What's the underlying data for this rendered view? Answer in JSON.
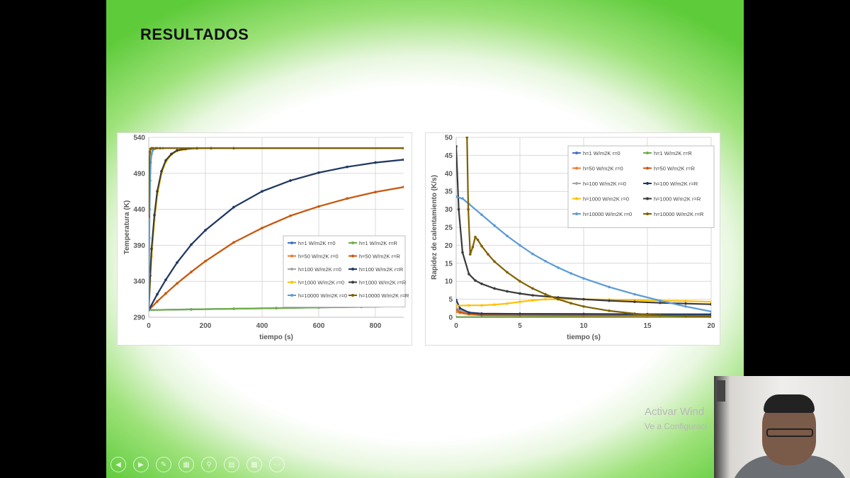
{
  "slide": {
    "title": "RESULTADOS"
  },
  "watermark": {
    "line1": "Activar Wind",
    "line2": "Ve a Configuraci"
  },
  "toolbar": {
    "icons": [
      "prev-icon",
      "next-icon",
      "pen-icon",
      "slides-icon",
      "zoom-icon",
      "subtitles-icon",
      "camera-icon",
      "more-icon"
    ]
  },
  "colors": {
    "slide_green": "#5ecb3a",
    "axis_text": "#595959",
    "grid": "#d9d9d9"
  },
  "chart_data": [
    {
      "type": "scatter",
      "title": "",
      "xlabel": "tiempo (s)",
      "ylabel": "Temperatura (K)",
      "xlim": [
        0,
        900
      ],
      "ylim": [
        290,
        540
      ],
      "xticks": [
        0,
        200,
        400,
        600,
        800
      ],
      "yticks": [
        290,
        340,
        390,
        440,
        490,
        540
      ],
      "grid": true,
      "legend_position": "lower-right inside",
      "legend_columns": 2,
      "series": [
        {
          "name": "h=1 W/m2K r=0",
          "color": "#4472c4",
          "x": [
            0,
            150,
            300,
            450,
            600,
            750,
            900
          ],
          "y": [
            300,
            300.9,
            301.8,
            302.7,
            303.6,
            304.4,
            305.3
          ]
        },
        {
          "name": "h=1 W/m2K r=R",
          "color": "#70ad47",
          "x": [
            0,
            150,
            300,
            450,
            600,
            750,
            900
          ],
          "y": [
            300,
            300.9,
            301.8,
            302.7,
            303.6,
            304.4,
            305.3
          ]
        },
        {
          "name": "h=50 W/m2K r=0",
          "color": "#ed7d31",
          "x": [
            0,
            30,
            60,
            100,
            150,
            200,
            300,
            400,
            500,
            600,
            700,
            800,
            900
          ],
          "y": [
            300,
            312,
            323,
            337,
            353,
            368,
            394,
            414,
            431,
            444,
            455,
            464,
            471
          ]
        },
        {
          "name": "h=50 W/m2K r=R",
          "color": "#c55a11",
          "x": [
            0,
            30,
            60,
            100,
            150,
            200,
            300,
            400,
            500,
            600,
            700,
            800,
            900
          ],
          "y": [
            300,
            312,
            323,
            337,
            353,
            368,
            394,
            414,
            431,
            444,
            455,
            464,
            471
          ]
        },
        {
          "name": "h=100 W/m2K r=0",
          "color": "#a5a5a5",
          "x": [
            0,
            30,
            60,
            100,
            150,
            200,
            300,
            400,
            500,
            600,
            700,
            800,
            900
          ],
          "y": [
            300,
            322,
            342,
            366,
            391,
            411,
            443,
            465,
            480,
            491,
            499,
            505,
            509
          ]
        },
        {
          "name": "h=100 W/m2K r=R",
          "color": "#203864",
          "x": [
            0,
            30,
            60,
            100,
            150,
            200,
            300,
            400,
            500,
            600,
            700,
            800,
            900
          ],
          "y": [
            300,
            322,
            342,
            366,
            391,
            411,
            443,
            465,
            480,
            491,
            499,
            505,
            509
          ]
        },
        {
          "name": "h=1000 W/m2K r=0",
          "color": "#ffc000",
          "x": [
            0,
            5,
            10,
            20,
            30,
            45,
            60,
            80,
            100,
            130,
            170,
            220,
            300,
            900
          ],
          "y": [
            300,
            340,
            375,
            425,
            460,
            490,
            506,
            516,
            521,
            523.5,
            524.5,
            525,
            525,
            525
          ]
        },
        {
          "name": "h=1000 W/m2K r=R",
          "color": "#3a3a3a",
          "x": [
            0,
            5,
            10,
            20,
            30,
            45,
            60,
            80,
            100,
            130,
            170,
            220,
            300,
            900
          ],
          "y": [
            300,
            348,
            385,
            432,
            465,
            493,
            508,
            517,
            522,
            524,
            525,
            525,
            525,
            525
          ]
        },
        {
          "name": "h=10000 W/m2K r=0",
          "color": "#5b9bd5",
          "x": [
            0,
            1,
            2,
            3,
            5,
            7,
            10,
            14,
            20,
            30,
            50,
            900
          ],
          "y": [
            300,
            350,
            400,
            440,
            480,
            505,
            517,
            522,
            524,
            525,
            525,
            525
          ]
        },
        {
          "name": "h=10000 W/m2K r=R",
          "color": "#7f6000",
          "x": [
            0,
            2,
            4,
            6,
            10,
            15,
            25,
            40,
            900
          ],
          "y": [
            430,
            505,
            520,
            524,
            525,
            525,
            525,
            525,
            525
          ]
        }
      ]
    },
    {
      "type": "scatter",
      "title": "",
      "xlabel": "tiempo (s)",
      "ylabel": "Rapidez de calentamiento (K/s)",
      "xlim": [
        0,
        20
      ],
      "ylim": [
        0,
        50
      ],
      "xticks": [
        0,
        5,
        10,
        15,
        20
      ],
      "yticks": [
        0,
        5,
        10,
        15,
        20,
        25,
        30,
        35,
        40,
        45,
        50
      ],
      "grid": true,
      "legend_position": "top-right inside",
      "legend_columns": 2,
      "series": [
        {
          "name": "h=1 W/m2K r=0",
          "color": "#4472c4",
          "x": [
            0,
            5,
            10,
            15,
            20
          ],
          "y": [
            0.05,
            0.05,
            0.05,
            0.05,
            0.05
          ]
        },
        {
          "name": "h=1 W/m2K r=R",
          "color": "#70ad47",
          "x": [
            0,
            5,
            10,
            15,
            20
          ],
          "y": [
            0.05,
            0.05,
            0.05,
            0.05,
            0.05
          ]
        },
        {
          "name": "h=50 W/m2K r=0",
          "color": "#ed7d31",
          "x": [
            0,
            0.3,
            1,
            2,
            5,
            10,
            15,
            20
          ],
          "y": [
            1.5,
            1.2,
            0.8,
            0.6,
            0.55,
            0.5,
            0.45,
            0.4
          ]
        },
        {
          "name": "h=50 W/m2K r=R",
          "color": "#c55a11",
          "x": [
            0,
            0.3,
            1,
            2,
            5,
            10,
            15,
            20
          ],
          "y": [
            2.2,
            1.5,
            0.9,
            0.6,
            0.55,
            0.5,
            0.45,
            0.4
          ]
        },
        {
          "name": "h=100 W/m2K r=0",
          "color": "#a5a5a5",
          "x": [
            0,
            0.3,
            1,
            2,
            5,
            10,
            15,
            20
          ],
          "y": [
            2.6,
            2.0,
            1.3,
            1.0,
            0.95,
            0.9,
            0.85,
            0.8
          ]
        },
        {
          "name": "h=100 W/m2K r=R",
          "color": "#203864",
          "x": [
            0,
            0.3,
            1,
            2,
            5,
            10,
            15,
            20
          ],
          "y": [
            4.8,
            2.5,
            1.3,
            1.0,
            0.95,
            0.9,
            0.85,
            0.8
          ]
        },
        {
          "name": "h=1000 W/m2K r=0",
          "color": "#ffc000",
          "x": [
            0,
            1,
            2,
            3,
            4,
            5,
            6,
            7,
            8,
            10,
            12,
            14,
            16,
            18,
            20
          ],
          "y": [
            3.2,
            3.3,
            3.3,
            3.5,
            3.8,
            4.3,
            4.7,
            5.0,
            5.0,
            5.0,
            4.9,
            4.8,
            4.6,
            4.5,
            4.3
          ]
        },
        {
          "name": "h=1000 W/m2K r=R",
          "color": "#3a3a3a",
          "x": [
            0,
            0.2,
            0.5,
            1,
            1.5,
            2,
            3,
            4,
            5,
            6,
            8,
            10,
            12,
            14,
            16,
            18,
            20
          ],
          "y": [
            47.5,
            30,
            18,
            12,
            10.2,
            9.3,
            8.0,
            7.2,
            6.6,
            6.1,
            5.5,
            5.0,
            4.6,
            4.3,
            4.0,
            3.8,
            3.6
          ]
        },
        {
          "name": "h=10000 W/m2K r=0",
          "color": "#5b9bd5",
          "x": [
            0,
            0.5,
            1,
            2,
            3,
            4,
            5,
            6,
            7,
            8,
            9,
            10,
            12,
            14,
            16,
            18,
            20
          ],
          "y": [
            33.5,
            33,
            31.5,
            28.5,
            25.5,
            22.6,
            20,
            17.6,
            15.6,
            13.8,
            12.2,
            10.8,
            8.4,
            6.4,
            4.6,
            3.0,
            1.6
          ]
        },
        {
          "name": "h=10000 W/m2K r=R",
          "color": "#7f6000",
          "x": [
            0.85,
            0.95,
            1.1,
            1.3,
            1.5,
            1.7,
            2,
            2.5,
            3,
            4,
            5,
            6,
            7,
            8,
            9,
            10,
            12,
            14,
            16,
            18,
            20
          ],
          "y": [
            50,
            30,
            17.5,
            19.5,
            22.3,
            21.5,
            19.8,
            17.5,
            15.5,
            12.5,
            10.0,
            8.0,
            6.4,
            5.0,
            3.9,
            3.0,
            1.8,
            1.0,
            0.5,
            0.3,
            0.2
          ]
        }
      ]
    }
  ]
}
